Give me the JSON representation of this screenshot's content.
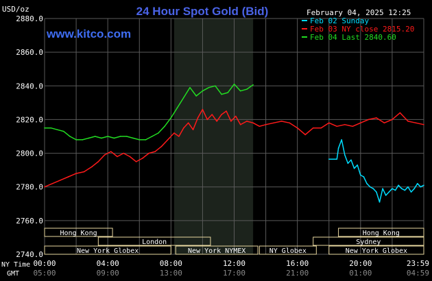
{
  "header": {
    "unit_label": "USD/oz",
    "title": "24 Hour Spot Gold (Bid)",
    "site": "www.kitco.com",
    "timestamp": "February 04, 2025 12:25"
  },
  "footer": {
    "ny_time_label": "NY Time",
    "gmt_label": "GMT"
  },
  "colors": {
    "background": "#000000",
    "title": "#4a63e6",
    "site": "#3f6df2",
    "grid": "#5a5a5a",
    "sunday": "#00ddff",
    "ny_close": "#ff1a1a",
    "last": "#22dd22",
    "market_box": "#e8d7a0",
    "highlight": "#1c231c"
  },
  "chart_data": {
    "type": "line",
    "title": "24 Hour Spot Gold (Bid)",
    "ylabel": "USD/oz",
    "xlabel": "",
    "ylim": [
      2740,
      2880
    ],
    "yticks": [
      "2880.0",
      "2860.0",
      "2840.0",
      "2820.0",
      "2800.0",
      "2780.0",
      "2760.0",
      "2740.0"
    ],
    "xlim_hours": [
      0,
      24
    ],
    "xticks_ny": [
      "00:00",
      "04:00",
      "08:00",
      "12:00",
      "16:00",
      "20:00",
      "23:59"
    ],
    "xticks_gmt": [
      "05:00",
      "09:00",
      "13:00",
      "17:00",
      "21:00",
      "01:00",
      "04:59"
    ],
    "grid": true,
    "legend_position": "top-right",
    "highlight_hours": [
      8.2,
      13.2
    ],
    "series": [
      {
        "name": "Feb 02 Sunday",
        "color": "#00ddff",
        "x_hours": [
          18.0,
          18.5,
          18.6,
          18.8,
          19.0,
          19.2,
          19.4,
          19.6,
          19.8,
          20.0,
          20.2,
          20.4,
          20.6,
          20.8,
          21.0,
          21.2,
          21.4,
          21.6,
          21.8,
          22.0,
          22.2,
          22.4,
          22.6,
          22.8,
          23.0,
          23.2,
          23.4,
          23.6,
          23.8,
          24.0
        ],
        "values": [
          2796.5,
          2796.5,
          2803,
          2808,
          2799,
          2794,
          2796,
          2791,
          2793,
          2787,
          2786,
          2782,
          2780,
          2779,
          2777,
          2771,
          2779,
          2775,
          2777,
          2779,
          2778,
          2781,
          2779,
          2778,
          2780,
          2777,
          2779,
          2782,
          2780,
          2781
        ]
      },
      {
        "name": "Feb 03 NY close 2815.20",
        "color": "#ff1a1a",
        "x_hours": [
          0.0,
          0.5,
          1.0,
          1.5,
          2.0,
          2.5,
          3.0,
          3.4,
          3.8,
          4.2,
          4.6,
          5.0,
          5.4,
          5.8,
          6.2,
          6.6,
          7.0,
          7.4,
          7.8,
          8.2,
          8.5,
          8.8,
          9.1,
          9.4,
          9.7,
          10.0,
          10.3,
          10.6,
          10.9,
          11.2,
          11.5,
          11.8,
          12.1,
          12.4,
          12.8,
          13.2,
          13.6,
          14.0,
          14.5,
          15.0,
          15.5,
          16.0,
          16.5,
          17.0,
          17.5,
          18.0,
          18.5,
          19.0,
          19.5,
          20.0,
          20.5,
          21.0,
          21.5,
          22.0,
          22.5,
          23.0,
          23.5,
          24.0
        ],
        "values": [
          2780,
          2782,
          2784,
          2786,
          2788,
          2789,
          2792,
          2795,
          2799,
          2801,
          2798,
          2800,
          2798,
          2795,
          2797,
          2800,
          2801,
          2804,
          2808,
          2812,
          2810,
          2815,
          2818,
          2814,
          2821,
          2826,
          2820,
          2823,
          2819,
          2823,
          2825,
          2819,
          2822,
          2817,
          2819,
          2818,
          2816,
          2817,
          2818,
          2819,
          2818,
          2815,
          2811,
          2815,
          2815,
          2818,
          2816,
          2817,
          2816,
          2818,
          2820,
          2821,
          2818,
          2820,
          2824,
          2819,
          2818,
          2817
        ]
      },
      {
        "name": "Feb 04 Last 2840.60",
        "color": "#22dd22",
        "x_hours": [
          0.0,
          0.4,
          0.8,
          1.2,
          1.6,
          2.0,
          2.4,
          2.8,
          3.2,
          3.6,
          4.0,
          4.4,
          4.8,
          5.2,
          5.6,
          6.0,
          6.4,
          6.8,
          7.2,
          7.6,
          8.0,
          8.4,
          8.8,
          9.2,
          9.6,
          10.0,
          10.4,
          10.8,
          11.2,
          11.6,
          12.0,
          12.4,
          12.8,
          13.2
        ],
        "values": [
          2815,
          2815,
          2814,
          2813,
          2810,
          2808,
          2808,
          2809,
          2810,
          2809,
          2810,
          2809,
          2810,
          2810,
          2809,
          2808,
          2808,
          2810,
          2812,
          2816,
          2821,
          2827,
          2833,
          2839,
          2834,
          2837,
          2839,
          2840,
          2835,
          2836,
          2841,
          2837,
          2838,
          2840.6
        ]
      }
    ],
    "market_sessions": [
      {
        "name": "Hong Kong",
        "row": 0,
        "start_hours": 0.0,
        "end_hours": 4.3
      },
      {
        "name": "Hong Kong",
        "row": 0,
        "start_hours": 18.6,
        "end_hours": 24.0
      },
      {
        "name": "London",
        "row": 1,
        "start_hours": 3.4,
        "end_hours": 10.5
      },
      {
        "name": "Sydney",
        "row": 1,
        "start_hours": 17.0,
        "end_hours": 24.0
      },
      {
        "name": "New York Globex",
        "row": 2,
        "start_hours": 0.0,
        "end_hours": 8.0
      },
      {
        "name": "New York NYMEX",
        "row": 2,
        "start_hours": 8.3,
        "end_hours": 13.5
      },
      {
        "name": "NY Globex",
        "row": 2,
        "start_hours": 13.6,
        "end_hours": 17.2
      },
      {
        "name": "New York Globex",
        "row": 2,
        "start_hours": 18.0,
        "end_hours": 24.0
      }
    ]
  }
}
